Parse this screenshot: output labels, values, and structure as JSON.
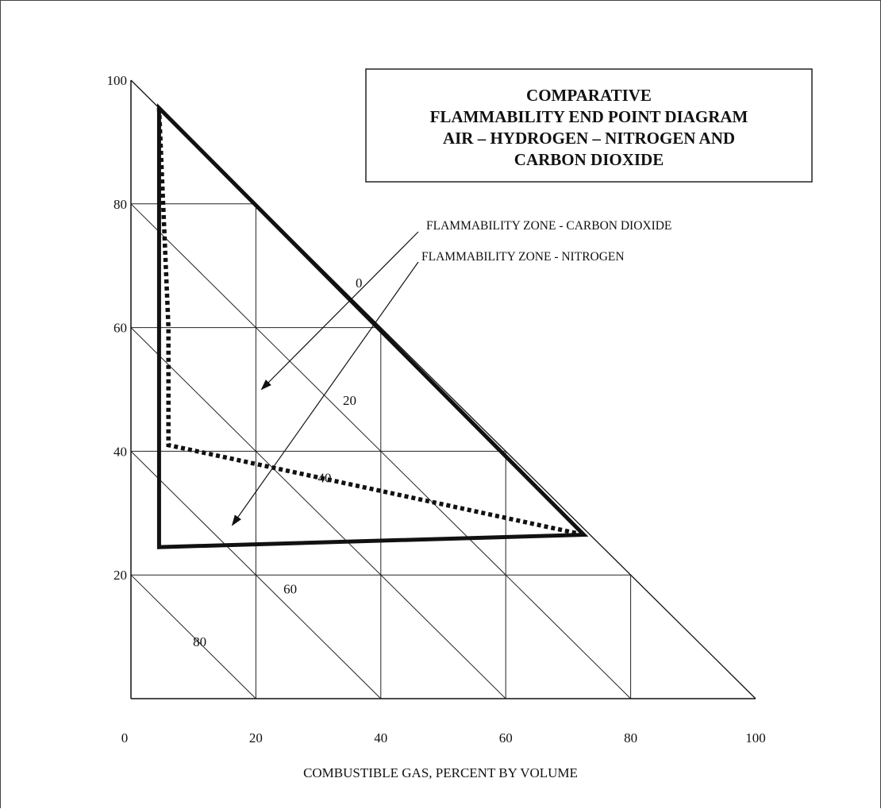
{
  "chart_data": {
    "type": "ternary",
    "title_lines": [
      "COMPARATIVE",
      "FLAMMABILITY END POINT DIAGRAM",
      "AIR – HYDROGEN – NITROGEN AND",
      "CARBON DIOXIDE"
    ],
    "xlabel": "COMBUSTIBLE GAS, PERCENT BY VOLUME",
    "xlim": [
      0,
      100
    ],
    "ylim": [
      0,
      100
    ],
    "x_ticks": [
      "0",
      "20",
      "40",
      "60",
      "80",
      "100"
    ],
    "x_tick_values": [
      0,
      20,
      40,
      60,
      80,
      100
    ],
    "y_ticks": [
      "20",
      "40",
      "60",
      "80",
      "100"
    ],
    "y_tick_values": [
      20,
      40,
      60,
      80,
      100
    ],
    "grid_values": [
      20,
      40,
      60,
      80
    ],
    "diagonal_labels": [
      {
        "text": "0",
        "x": 36.5,
        "y": 66.5
      },
      {
        "text": "20",
        "x": 35.0,
        "y": 47.5
      },
      {
        "text": "40",
        "x": 31.0,
        "y": 35.0
      },
      {
        "text": "60",
        "x": 25.5,
        "y": 17.0
      },
      {
        "text": "80",
        "x": 11.0,
        "y": 8.5
      }
    ],
    "series": [
      {
        "name": "FLAMMABILITY ZONE  - CARBON DIOXIDE",
        "style": "dotted",
        "points": [
          [
            4.5,
            95.5
          ],
          [
            6,
            60
          ],
          [
            6,
            41
          ],
          [
            72.5,
            26.5
          ]
        ]
      },
      {
        "name": "FLAMMABILITY ZONE  - NITROGEN",
        "style": "solid",
        "points": [
          [
            4.5,
            95.5
          ],
          [
            72.5,
            26.5
          ],
          [
            4.5,
            24.5
          ]
        ]
      }
    ],
    "callouts": [
      {
        "text": "FLAMMABILITY ZONE  - CARBON DIOXIDE",
        "tip": [
          20,
          50
        ]
      },
      {
        "text": "FLAMMABILITY ZONE  - NITROGEN",
        "tip": [
          16.5,
          29
        ]
      }
    ]
  }
}
